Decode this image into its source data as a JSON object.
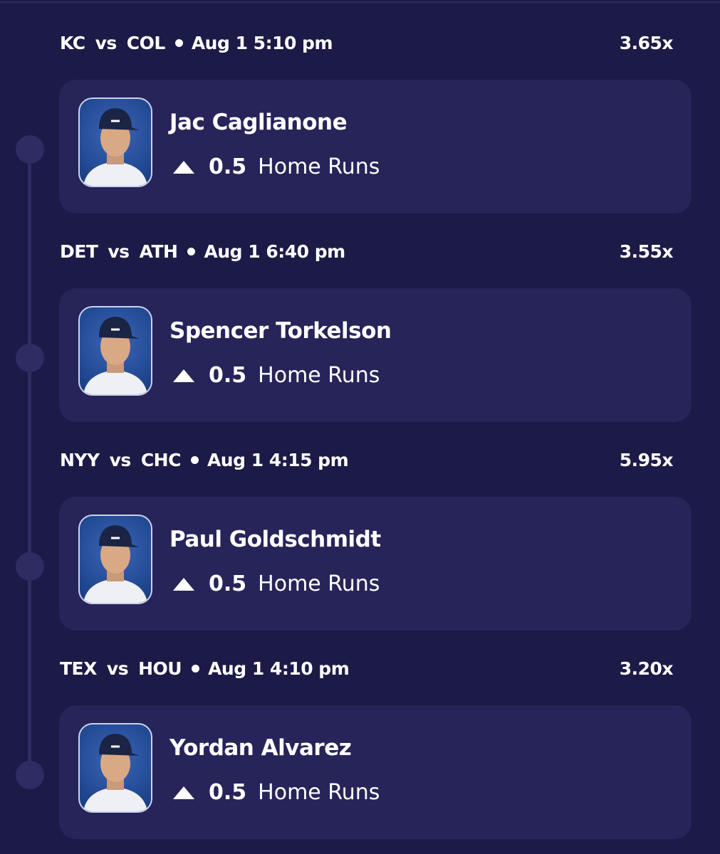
{
  "picks": [
    {
      "team_home": "KC",
      "vs": "vs",
      "team_away": "COL",
      "time": "Aug 1 5:10 pm",
      "multiplier": "3.65x",
      "player": "Jac Caglianone",
      "line": "0.5",
      "stat": "Home Runs"
    },
    {
      "team_home": "DET",
      "vs": "vs",
      "team_away": "ATH",
      "time": "Aug 1 6:40 pm",
      "multiplier": "3.55x",
      "player": "Spencer Torkelson",
      "line": "0.5",
      "stat": "Home Runs"
    },
    {
      "team_home": "NYY",
      "vs": "vs",
      "team_away": "CHC",
      "time": "Aug 1 4:15 pm",
      "multiplier": "5.95x",
      "player": "Paul Goldschmidt",
      "line": "0.5",
      "stat": "Home Runs"
    },
    {
      "team_home": "TEX",
      "vs": "vs",
      "team_away": "HOU",
      "time": "Aug 1 4:10 pm",
      "multiplier": "3.20x",
      "player": "Yordan Alvarez",
      "line": "0.5",
      "stat": "Home Runs"
    }
  ]
}
